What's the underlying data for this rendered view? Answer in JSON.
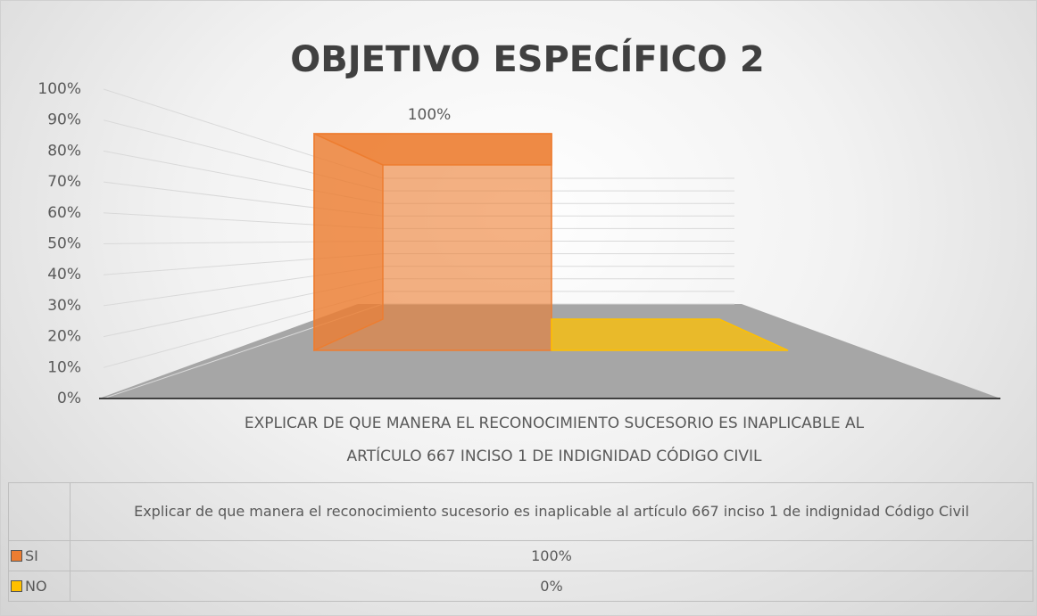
{
  "chart_data": {
    "type": "bar3d",
    "title": "OBJETIVO ESPECÍFICO 2",
    "categories": [
      "EXPLICAR DE QUE MANERA EL RECONOCIMIENTO SUCESORIO ES INAPLICABLE AL ARTÍCULO 667 INCISO 1 DE INDIGNIDAD CÓDIGO CIVIL"
    ],
    "table_header": "Explicar de que manera el reconocimiento sucesorio es inaplicable al artículo 667 inciso 1 de indignidad Código Civil",
    "series": [
      {
        "name": "SI",
        "color": "#ed7d31",
        "values": [
          100
        ],
        "value_labels": [
          "100%"
        ]
      },
      {
        "name": "NO",
        "color": "#ffc000",
        "values": [
          0
        ],
        "value_labels": [
          "0%"
        ]
      }
    ],
    "ylim": [
      0,
      100
    ],
    "yticks": [
      {
        "value": 0,
        "label": "0%"
      },
      {
        "value": 10,
        "label": "10%"
      },
      {
        "value": 20,
        "label": "20%"
      },
      {
        "value": 30,
        "label": "30%"
      },
      {
        "value": 40,
        "label": "40%"
      },
      {
        "value": 50,
        "label": "50%"
      },
      {
        "value": 60,
        "label": "60%"
      },
      {
        "value": 70,
        "label": "70%"
      },
      {
        "value": 80,
        "label": "80%"
      },
      {
        "value": 90,
        "label": "90%"
      },
      {
        "value": 100,
        "label": "100%"
      }
    ],
    "grid": true
  }
}
